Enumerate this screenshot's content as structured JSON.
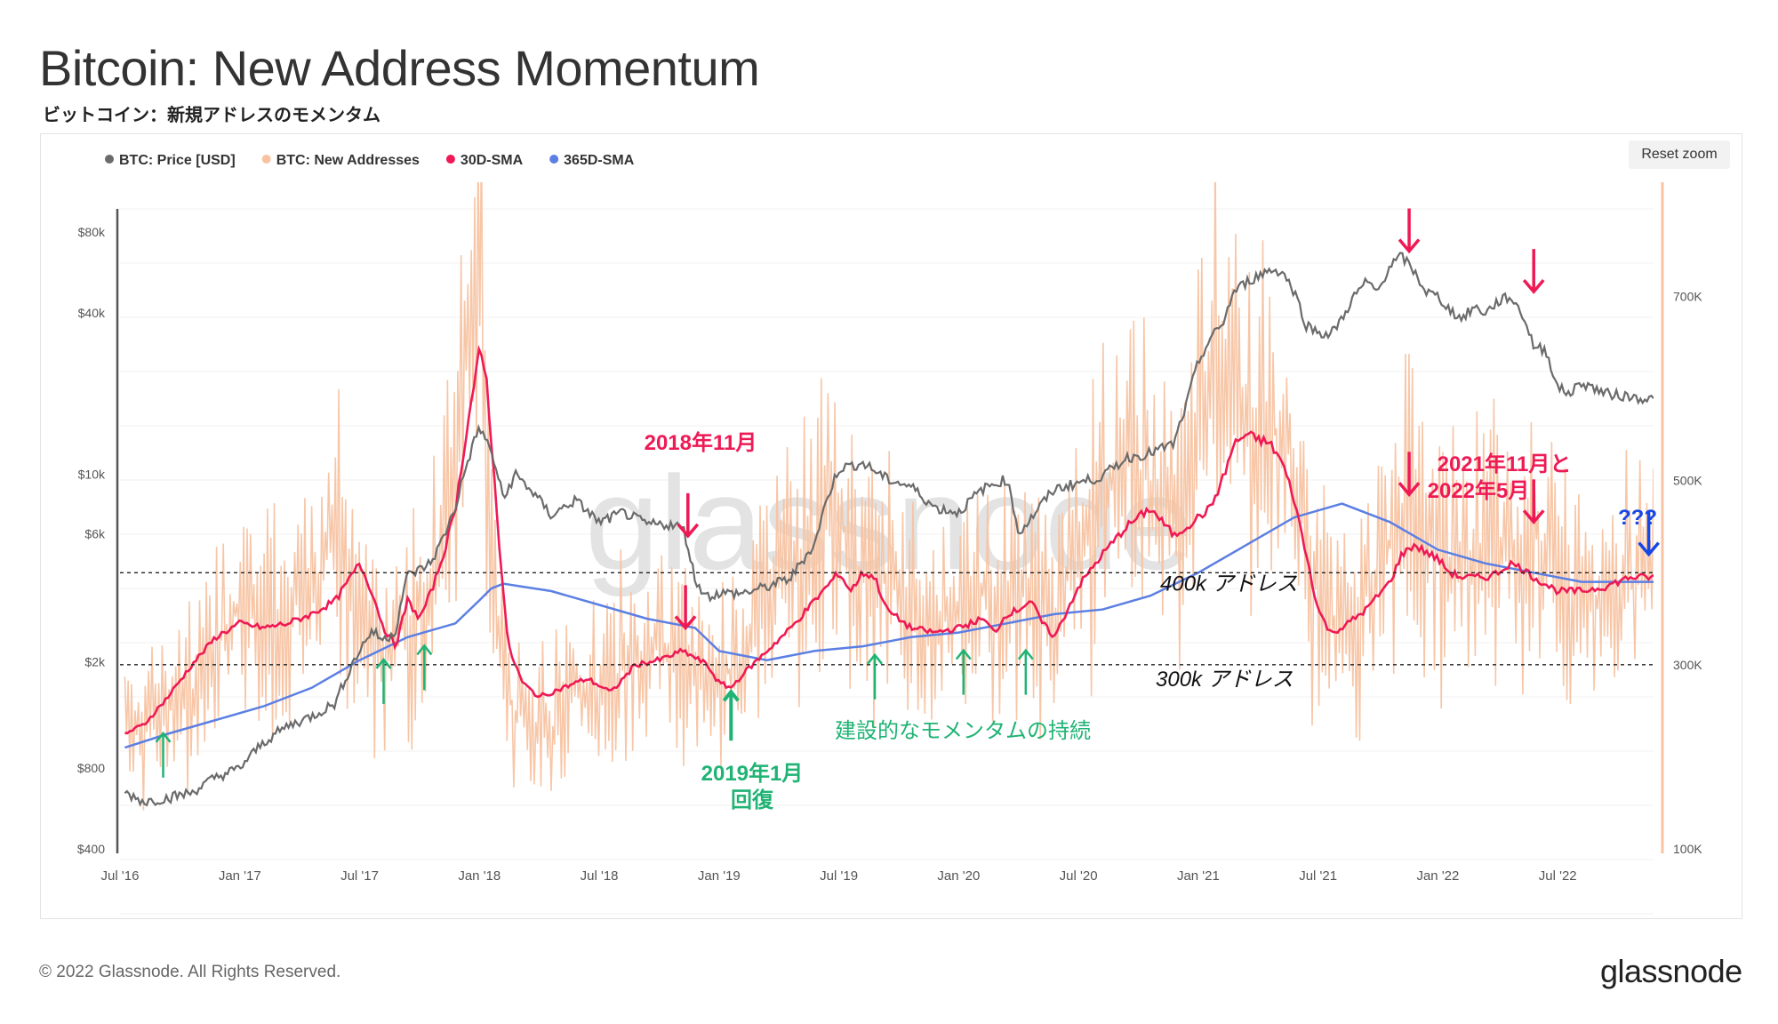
{
  "header": {
    "title": "Bitcoin: New Address Momentum",
    "subtitle": "ビットコイン：新規アドレスのモメンタム"
  },
  "toolbar": {
    "reset_zoom": "Reset zoom"
  },
  "footer": {
    "copyright": "© 2022 Glassnode. All Rights Reserved.",
    "brand": "glassnode"
  },
  "watermark": "glassnode",
  "colors": {
    "price": "#6b6b6b",
    "new_addresses": "#f7c3a2",
    "sma30": "#ee1a55",
    "sma365": "#5b7fe3",
    "annotation_red": "#ee1a55",
    "annotation_green": "#1fb374",
    "annotation_blue": "#1547e6"
  },
  "chart_data": {
    "type": "line",
    "title": "Bitcoin: New Address Momentum",
    "legend": {
      "placement": "top-left",
      "items": [
        {
          "name": "BTC: Price [USD]",
          "color": "#6b6b6b"
        },
        {
          "name": "BTC: New Addresses",
          "color": "#f7c3a2"
        },
        {
          "name": "30D-SMA",
          "color": "#ee1a55"
        },
        {
          "name": "365D-SMA",
          "color": "#5b7fe3"
        }
      ]
    },
    "x_ticks": [
      "Jul '16",
      "Jan '17",
      "Jul '17",
      "Jan '18",
      "Jul '18",
      "Jan '19",
      "Jul '19",
      "Jan '20",
      "Jul '20",
      "Jan '21",
      "Jul '21",
      "Jan '22",
      "Jul '22"
    ],
    "x_range": [
      2016.5,
      2022.9
    ],
    "y_left": {
      "scale": "log",
      "range": [
        400,
        100000
      ],
      "ticks": [
        400,
        800,
        2000,
        6000,
        10000,
        40000,
        80000
      ],
      "tick_labels": [
        "$400",
        "$800",
        "$2k",
        "$6k",
        "$10k",
        "$40k",
        "$80k"
      ]
    },
    "y_right": {
      "scale": "linear",
      "range": [
        100000,
        800000
      ],
      "ticks": [
        100000,
        300000,
        500000,
        700000
      ],
      "tick_labels": [
        "100K",
        "300K",
        "500K",
        "700K"
      ]
    },
    "series": [
      {
        "name": "BTC: Price [USD]",
        "axis": "left",
        "x": [
          2016.52,
          2016.6,
          2016.7,
          2016.8,
          2016.9,
          2017.0,
          2017.1,
          2017.2,
          2017.3,
          2017.4,
          2017.5,
          2017.55,
          2017.6,
          2017.65,
          2017.7,
          2017.75,
          2017.8,
          2017.85,
          2017.9,
          2017.95,
          2018.0,
          2018.05,
          2018.1,
          2018.15,
          2018.2,
          2018.3,
          2018.4,
          2018.5,
          2018.6,
          2018.7,
          2018.8,
          2018.85,
          2018.9,
          2018.95,
          2019.0,
          2019.1,
          2019.2,
          2019.3,
          2019.4,
          2019.5,
          2019.6,
          2019.7,
          2019.8,
          2019.9,
          2020.0,
          2020.1,
          2020.2,
          2020.25,
          2020.3,
          2020.4,
          2020.5,
          2020.6,
          2020.7,
          2020.8,
          2020.9,
          2020.95,
          2021.0,
          2021.05,
          2021.1,
          2021.15,
          2021.2,
          2021.3,
          2021.35,
          2021.4,
          2021.45,
          2021.5,
          2021.55,
          2021.6,
          2021.65,
          2021.7,
          2021.75,
          2021.8,
          2021.85,
          2021.9,
          2021.95,
          2022.0,
          2022.05,
          2022.1,
          2022.15,
          2022.2,
          2022.25,
          2022.3,
          2022.35,
          2022.4,
          2022.45,
          2022.5,
          2022.55,
          2022.6,
          2022.7,
          2022.8,
          2022.9
        ],
        "values": [
          650,
          600,
          620,
          650,
          740,
          800,
          1000,
          1150,
          1250,
          1400,
          2200,
          2600,
          2400,
          2600,
          4200,
          4400,
          4700,
          5800,
          7500,
          11000,
          15000,
          12000,
          8000,
          10000,
          9000,
          7000,
          8000,
          6600,
          7200,
          6500,
          6500,
          6300,
          4000,
          3500,
          3600,
          3600,
          3800,
          4100,
          5500,
          10500,
          11000,
          9600,
          9000,
          7500,
          7200,
          8800,
          9600,
          6000,
          6800,
          8800,
          9300,
          9800,
          11500,
          12000,
          13000,
          18000,
          26000,
          32000,
          36000,
          48000,
          52000,
          58000,
          57000,
          48000,
          36000,
          34000,
          33000,
          38000,
          46000,
          52000,
          48000,
          60000,
          65000,
          57000,
          48000,
          46000,
          41000,
          38000,
          42000,
          40000,
          44000,
          46000,
          40000,
          30000,
          29000,
          21000,
          20000,
          22000,
          20000,
          19500,
          19000
        ]
      },
      {
        "name": "BTC: New Addresses",
        "axis": "right",
        "x": [
          2016.52,
          2016.65,
          2016.8,
          2016.9,
          2017.0,
          2017.15,
          2017.3,
          2017.4,
          2017.5,
          2017.6,
          2017.7,
          2017.8,
          2017.9,
          2017.95,
          2018.0,
          2018.05,
          2018.1,
          2018.15,
          2018.2,
          2018.3,
          2018.4,
          2018.5,
          2018.6,
          2018.7,
          2018.8,
          2018.9,
          2019.0,
          2019.1,
          2019.2,
          2019.3,
          2019.4,
          2019.5,
          2019.6,
          2019.7,
          2019.8,
          2019.9,
          2020.0,
          2020.1,
          2020.2,
          2020.3,
          2020.4,
          2020.5,
          2020.6,
          2020.7,
          2020.8,
          2020.9,
          2021.0,
          2021.05,
          2021.1,
          2021.2,
          2021.3,
          2021.4,
          2021.45,
          2021.5,
          2021.55,
          2021.6,
          2021.7,
          2021.8,
          2021.85,
          2021.9,
          2022.0,
          2022.1,
          2022.2,
          2022.3,
          2022.4,
          2022.5,
          2022.6,
          2022.7,
          2022.8,
          2022.9
        ],
        "values": [
          240000,
          250000,
          270000,
          320000,
          360000,
          350000,
          380000,
          440000,
          340000,
          300000,
          350000,
          380000,
          520000,
          650000,
          700000,
          420000,
          290000,
          250000,
          240000,
          230000,
          280000,
          260000,
          300000,
          320000,
          310000,
          290000,
          280000,
          310000,
          370000,
          400000,
          440000,
          460000,
          390000,
          400000,
          360000,
          360000,
          350000,
          380000,
          390000,
          370000,
          340000,
          440000,
          470000,
          520000,
          500000,
          480000,
          560000,
          620000,
          600000,
          580000,
          560000,
          520000,
          430000,
          380000,
          340000,
          330000,
          380000,
          430000,
          470000,
          460000,
          420000,
          400000,
          430000,
          410000,
          450000,
          390000,
          370000,
          380000,
          390000,
          390000
        ]
      },
      {
        "name": "30D-SMA",
        "axis": "right",
        "x": [
          2016.52,
          2016.6,
          2016.7,
          2016.8,
          2016.9,
          2017.0,
          2017.1,
          2017.2,
          2017.3,
          2017.4,
          2017.5,
          2017.55,
          2017.6,
          2017.65,
          2017.7,
          2017.75,
          2017.8,
          2017.85,
          2017.9,
          2017.95,
          2018.0,
          2018.03,
          2018.08,
          2018.12,
          2018.18,
          2018.25,
          2018.35,
          2018.45,
          2018.55,
          2018.65,
          2018.75,
          2018.85,
          2018.95,
          2019.0,
          2019.05,
          2019.1,
          2019.2,
          2019.3,
          2019.4,
          2019.5,
          2019.55,
          2019.6,
          2019.65,
          2019.7,
          2019.8,
          2019.9,
          2020.0,
          2020.05,
          2020.1,
          2020.15,
          2020.2,
          2020.25,
          2020.3,
          2020.35,
          2020.4,
          2020.5,
          2020.6,
          2020.7,
          2020.8,
          2020.9,
          2021.0,
          2021.05,
          2021.1,
          2021.15,
          2021.2,
          2021.25,
          2021.3,
          2021.35,
          2021.4,
          2021.45,
          2021.5,
          2021.55,
          2021.6,
          2021.7,
          2021.8,
          2021.85,
          2021.9,
          2022.0,
          2022.05,
          2022.1,
          2022.2,
          2022.25,
          2022.3,
          2022.35,
          2022.4,
          2022.5,
          2022.6,
          2022.7,
          2022.8,
          2022.9
        ],
        "values": [
          225000,
          235000,
          265000,
          300000,
          330000,
          345000,
          340000,
          345000,
          355000,
          370000,
          410000,
          380000,
          340000,
          320000,
          370000,
          350000,
          380000,
          420000,
          470000,
          560000,
          640000,
          610000,
          440000,
          320000,
          280000,
          265000,
          275000,
          285000,
          270000,
          300000,
          305000,
          315000,
          300000,
          280000,
          275000,
          290000,
          315000,
          340000,
          370000,
          400000,
          380000,
          400000,
          395000,
          360000,
          340000,
          335000,
          340000,
          345000,
          350000,
          335000,
          355000,
          360000,
          370000,
          345000,
          330000,
          385000,
          420000,
          450000,
          470000,
          440000,
          460000,
          470000,
          500000,
          540000,
          550000,
          545000,
          540000,
          520000,
          480000,
          420000,
          360000,
          335000,
          340000,
          360000,
          390000,
          420000,
          430000,
          415000,
          400000,
          395000,
          395000,
          400000,
          410000,
          405000,
          395000,
          380000,
          380000,
          385000,
          395000,
          395000
        ]
      },
      {
        "name": "365D-SMA",
        "axis": "right",
        "x": [
          2016.52,
          2016.7,
          2016.9,
          2017.1,
          2017.3,
          2017.5,
          2017.7,
          2017.9,
          2018.0,
          2018.05,
          2018.1,
          2018.3,
          2018.5,
          2018.7,
          2018.9,
          2019.0,
          2019.2,
          2019.4,
          2019.6,
          2019.8,
          2020.0,
          2020.2,
          2020.4,
          2020.6,
          2020.8,
          2021.0,
          2021.2,
          2021.4,
          2021.6,
          2021.8,
          2022.0,
          2022.2,
          2022.4,
          2022.6,
          2022.8,
          2022.9
        ],
        "values": [
          210000,
          225000,
          240000,
          255000,
          275000,
          305000,
          330000,
          345000,
          370000,
          383000,
          388000,
          380000,
          365000,
          350000,
          340000,
          315000,
          305000,
          315000,
          320000,
          330000,
          335000,
          345000,
          355000,
          360000,
          375000,
          400000,
          430000,
          460000,
          475000,
          455000,
          425000,
          410000,
          400000,
          390000,
          390000,
          390000
        ]
      }
    ],
    "reference_lines": [
      {
        "value": 400000,
        "label": "400k アドレス"
      },
      {
        "value": 300000,
        "label": "300k アドレス"
      }
    ],
    "annotations": [
      {
        "text": "2018年11月",
        "color": "red"
      },
      {
        "text": "2021年11月と",
        "color": "red"
      },
      {
        "text": "2022年5月",
        "color": "red"
      },
      {
        "text": "???",
        "color": "blue"
      },
      {
        "text": "2019年1月",
        "color": "green"
      },
      {
        "text": "回復",
        "color": "green"
      },
      {
        "text": "建設的なモメンタムの持続",
        "color": "green"
      }
    ],
    "arrows": [
      {
        "x": 2018.87,
        "axis": "right",
        "target": 440000,
        "direction": "down",
        "color": "red"
      },
      {
        "x": 2018.86,
        "axis": "right",
        "target": 340000,
        "direction": "down",
        "color": "red"
      },
      {
        "x": 2021.88,
        "axis": "left",
        "target": 68000,
        "direction": "down",
        "color": "red"
      },
      {
        "x": 2022.4,
        "axis": "left",
        "target": 48000,
        "direction": "down",
        "color": "red"
      },
      {
        "x": 2021.88,
        "axis": "right",
        "target": 485000,
        "direction": "down",
        "color": "red"
      },
      {
        "x": 2022.4,
        "axis": "right",
        "target": 455000,
        "direction": "down",
        "color": "red"
      },
      {
        "x": 2022.88,
        "axis": "right",
        "target": 420000,
        "direction": "down",
        "color": "blue"
      },
      {
        "x": 2016.68,
        "axis": "right",
        "target": 245000,
        "direction": "up",
        "color": "green"
      },
      {
        "x": 2017.6,
        "axis": "right",
        "target": 325000,
        "direction": "up",
        "color": "green"
      },
      {
        "x": 2017.77,
        "axis": "right",
        "target": 340000,
        "direction": "up",
        "color": "green"
      },
      {
        "x": 2019.05,
        "axis": "right",
        "target": 290000,
        "direction": "up",
        "color": "green"
      },
      {
        "x": 2019.65,
        "axis": "right",
        "target": 330000,
        "direction": "up",
        "color": "green"
      },
      {
        "x": 2020.02,
        "axis": "right",
        "target": 335000,
        "direction": "up",
        "color": "green"
      },
      {
        "x": 2020.28,
        "axis": "right",
        "target": 335000,
        "direction": "up",
        "color": "green"
      }
    ]
  }
}
